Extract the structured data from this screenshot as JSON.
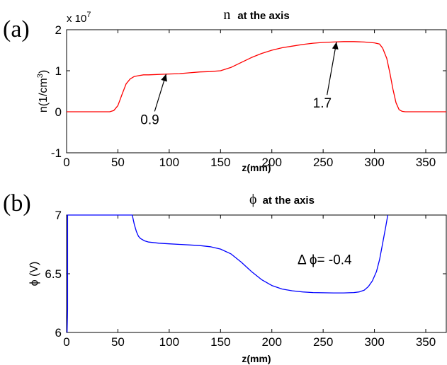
{
  "chart_data": [
    {
      "type": "line",
      "panel_label": "(a)",
      "title_symbol": "n",
      "title_text": "at the axis",
      "xlabel": "z(mm)",
      "ylabel": "n(1/cm",
      "ylabel_sup": "3",
      "ylabel_end": ")",
      "y_multiplier": "x 10",
      "y_multiplier_exp": "7",
      "xlim": [
        0,
        370
      ],
      "ylim": [
        -1,
        2
      ],
      "xticks": [
        0,
        50,
        100,
        150,
        200,
        250,
        300,
        350
      ],
      "yticks": [
        -1,
        0,
        1,
        2
      ],
      "line_color": "#ff0000",
      "series": [
        {
          "x": [
            0,
            42,
            46,
            50,
            54,
            58,
            62,
            66,
            70,
            75,
            80,
            90,
            100,
            110,
            120,
            130,
            140,
            150,
            160,
            170,
            180,
            190,
            200,
            210,
            220,
            230,
            240,
            250,
            260,
            270,
            280,
            290,
            300,
            305,
            308,
            312,
            315,
            318,
            321,
            324,
            327,
            330,
            340,
            350,
            370
          ],
          "y": [
            0,
            0,
            0.03,
            0.15,
            0.42,
            0.68,
            0.8,
            0.86,
            0.88,
            0.9,
            0.9,
            0.91,
            0.92,
            0.93,
            0.95,
            0.97,
            0.98,
            1.0,
            1.08,
            1.2,
            1.32,
            1.42,
            1.5,
            1.56,
            1.6,
            1.64,
            1.67,
            1.69,
            1.7,
            1.71,
            1.71,
            1.7,
            1.68,
            1.65,
            1.55,
            1.3,
            0.95,
            0.55,
            0.22,
            0.05,
            0.01,
            0,
            0,
            0,
            0
          ]
        }
      ],
      "annotations": [
        {
          "text": "0.9",
          "point": [
            97,
            0.92
          ],
          "text_pos": [
            72,
            -0.3
          ]
        },
        {
          "text": "1.7",
          "point": [
            263,
            1.7
          ],
          "text_pos": [
            240,
            0.1
          ]
        }
      ]
    },
    {
      "type": "line",
      "panel_label": "(b)",
      "title_symbol": "ϕ",
      "title_text": "at the axis",
      "xlabel": "z(mm)",
      "ylabel": "ϕ (V)",
      "xlim": [
        0,
        370
      ],
      "ylim": [
        6,
        7
      ],
      "xticks": [
        0,
        50,
        100,
        150,
        200,
        250,
        300,
        350
      ],
      "yticks": [
        6,
        6.5,
        7
      ],
      "line_color": "#0000ff",
      "series": [
        {
          "x": [
            0.5,
            1,
            1,
            1,
            64,
            66,
            68,
            70,
            72,
            76,
            80,
            90,
            100,
            110,
            120,
            130,
            140,
            150,
            160,
            170,
            180,
            190,
            200,
            210,
            220,
            230,
            240,
            250,
            260,
            270,
            280,
            285,
            290,
            294,
            298,
            302,
            305,
            308,
            311,
            313
          ],
          "y": [
            6.0,
            6.2,
            7.0,
            7.0,
            7.0,
            6.92,
            6.86,
            6.82,
            6.8,
            6.78,
            6.77,
            6.76,
            6.755,
            6.75,
            6.745,
            6.74,
            6.73,
            6.71,
            6.67,
            6.6,
            6.52,
            6.45,
            6.4,
            6.37,
            6.355,
            6.345,
            6.34,
            6.338,
            6.337,
            6.337,
            6.34,
            6.345,
            6.36,
            6.39,
            6.44,
            6.52,
            6.62,
            6.76,
            6.9,
            7.0
          ]
        }
      ],
      "annotations": [
        {
          "text": "Δ ϕ= -0.4",
          "text_pos": [
            225,
            6.58
          ]
        }
      ]
    }
  ]
}
